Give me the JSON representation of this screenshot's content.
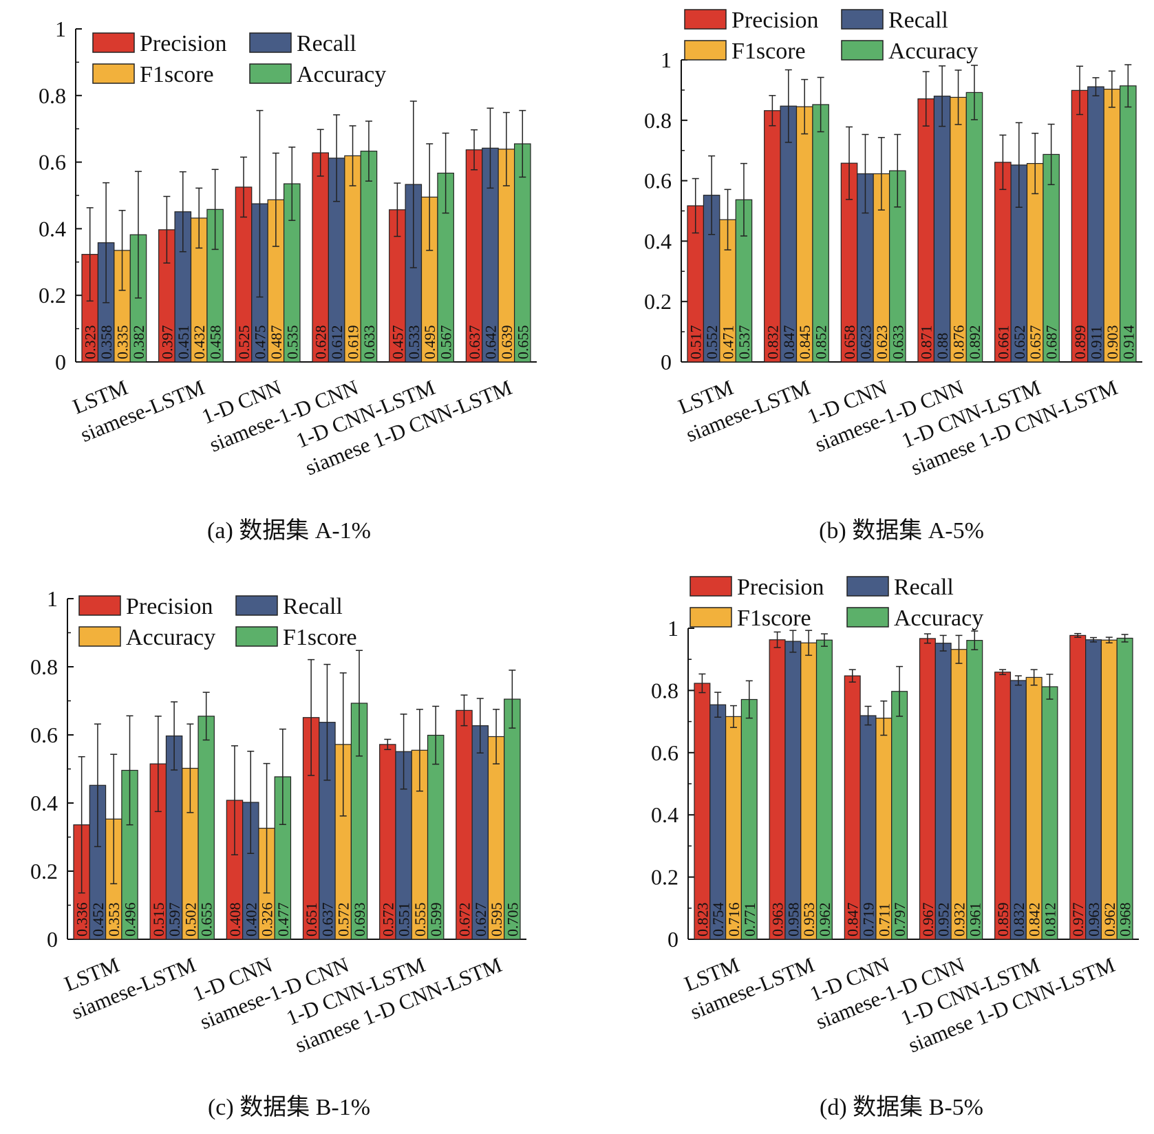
{
  "chart_data": [
    {
      "type": "bar",
      "caption": "(a)  数据集 A-1%",
      "categories": [
        "LSTM",
        "siamese-LSTM",
        "1-D CNN",
        "siamese-1-D CNN",
        "1-D CNN-LSTM",
        "siamese 1-D CNN-LSTM"
      ],
      "ylim": [
        0,
        1
      ],
      "yticks": [
        "0",
        "0.2",
        "0.4",
        "0.6",
        "0.8",
        "1"
      ],
      "ytick_values": [
        0,
        0.2,
        0.4,
        0.6,
        0.8,
        1
      ],
      "legend_position": "top-left",
      "series": [
        {
          "name": "Precision",
          "color": "#d93a2e",
          "values": [
            0.323,
            0.397,
            0.525,
            0.628,
            0.457,
            0.637
          ],
          "labels": [
            "0.323",
            "0.397",
            "0.525",
            "0.628",
            "0.457",
            "0.637"
          ],
          "errors": [
            0.14,
            0.1,
            0.09,
            0.07,
            0.08,
            0.06
          ]
        },
        {
          "name": "Recall",
          "color": "#475c86",
          "values": [
            0.358,
            0.451,
            0.475,
            0.612,
            0.533,
            0.642
          ],
          "labels": [
            "0.358",
            "0.451",
            "0.475",
            "0.612",
            "0.533",
            "0.642"
          ],
          "errors": [
            0.18,
            0.12,
            0.28,
            0.13,
            0.25,
            0.12
          ]
        },
        {
          "name": "F1score",
          "color": "#f2b13c",
          "values": [
            0.335,
            0.432,
            0.487,
            0.619,
            0.495,
            0.639
          ],
          "labels": [
            "0.335",
            "0.432",
            "0.487",
            "0.619",
            "0.495",
            "0.639"
          ],
          "errors": [
            0.12,
            0.09,
            0.14,
            0.09,
            0.16,
            0.11
          ]
        },
        {
          "name": "Accuracy",
          "color": "#5cb06a",
          "values": [
            0.382,
            0.458,
            0.535,
            0.633,
            0.567,
            0.655
          ],
          "labels": [
            "0.382",
            "0.458",
            "0.535",
            "0.633",
            "0.567",
            "0.655"
          ],
          "errors": [
            0.19,
            0.12,
            0.11,
            0.09,
            0.12,
            0.1
          ]
        }
      ]
    },
    {
      "type": "bar",
      "caption": "(b)  数据集 A-5%",
      "categories": [
        "LSTM",
        "siamese-LSTM",
        "1-D CNN",
        "siamese-1-D CNN",
        "1-D CNN-LSTM",
        "siamese 1-D CNN-LSTM"
      ],
      "ylim": [
        0,
        1
      ],
      "yticks": [
        "0",
        "0.2",
        "0.4",
        "0.6",
        "0.8",
        "1"
      ],
      "ytick_values": [
        0,
        0.2,
        0.4,
        0.6,
        0.8,
        1
      ],
      "legend_position": "top-left",
      "series": [
        {
          "name": "Precision",
          "color": "#d93a2e",
          "values": [
            0.517,
            0.832,
            0.658,
            0.871,
            0.661,
            0.899
          ],
          "labels": [
            "0.517",
            "0.832",
            "0.658",
            "0.871",
            "0.661",
            "0.899"
          ],
          "errors": [
            0.09,
            0.05,
            0.12,
            0.09,
            0.09,
            0.08
          ]
        },
        {
          "name": "Recall",
          "color": "#475c86",
          "values": [
            0.552,
            0.847,
            0.623,
            0.88,
            0.652,
            0.911
          ],
          "labels": [
            "0.552",
            "0.847",
            "0.623",
            "0.88",
            "0.652",
            "0.911"
          ],
          "errors": [
            0.13,
            0.12,
            0.13,
            0.1,
            0.14,
            0.03
          ]
        },
        {
          "name": "F1score",
          "color": "#f2b13c",
          "values": [
            0.471,
            0.845,
            0.623,
            0.876,
            0.657,
            0.903
          ],
          "labels": [
            "0.471",
            "0.845",
            "0.623",
            "0.876",
            "0.657",
            "0.903"
          ],
          "errors": [
            0.1,
            0.09,
            0.12,
            0.09,
            0.1,
            0.06
          ]
        },
        {
          "name": "Accuracy",
          "color": "#5cb06a",
          "values": [
            0.537,
            0.852,
            0.633,
            0.892,
            0.687,
            0.914
          ],
          "labels": [
            "0.537",
            "0.852",
            "0.633",
            "0.892",
            "0.687",
            "0.914"
          ],
          "errors": [
            0.12,
            0.09,
            0.12,
            0.09,
            0.1,
            0.07
          ]
        }
      ]
    },
    {
      "type": "bar",
      "caption": "(c)  数据集 B-1%",
      "categories": [
        "LSTM",
        "siamese-LSTM",
        "1-D CNN",
        "siamese-1-D CNN",
        "1-D CNN-LSTM",
        "siamese 1-D CNN-LSTM"
      ],
      "ylim": [
        0,
        1
      ],
      "yticks": [
        "0",
        "0.2",
        "0.4",
        "0.6",
        "0.8",
        "1"
      ],
      "ytick_values": [
        0,
        0.2,
        0.4,
        0.6,
        0.8,
        1
      ],
      "legend_position": "top-left",
      "series": [
        {
          "name": "Precision",
          "color": "#d93a2e",
          "values": [
            0.336,
            0.515,
            0.408,
            0.651,
            0.572,
            0.672
          ],
          "labels": [
            "0.336",
            "0.515",
            "0.408",
            "0.651",
            "0.572",
            "0.672"
          ],
          "errors": [
            0.2,
            0.14,
            0.16,
            0.17,
            0.015,
            0.045
          ]
        },
        {
          "name": "Recall",
          "color": "#475c86",
          "values": [
            0.452,
            0.597,
            0.402,
            0.637,
            0.551,
            0.627
          ],
          "labels": [
            "0.452",
            "0.597",
            "0.402",
            "0.637",
            "0.551",
            "0.627"
          ],
          "errors": [
            0.18,
            0.1,
            0.15,
            0.17,
            0.11,
            0.08
          ]
        },
        {
          "name": "Accuracy",
          "color": "#f2b13c",
          "values": [
            0.353,
            0.502,
            0.326,
            0.572,
            0.555,
            0.595
          ],
          "labels": [
            "0.353",
            "0.502",
            "0.326",
            "0.572",
            "0.555",
            "0.595"
          ],
          "errors": [
            0.19,
            0.13,
            0.19,
            0.21,
            0.12,
            0.08
          ]
        },
        {
          "name": "F1score",
          "color": "#5cb06a",
          "values": [
            0.496,
            0.655,
            0.477,
            0.693,
            0.599,
            0.705
          ],
          "labels": [
            "0.496",
            "0.655",
            "0.477",
            "0.693",
            "0.599",
            "0.705"
          ],
          "errors": [
            0.16,
            0.07,
            0.14,
            0.155,
            0.085,
            0.085
          ]
        }
      ]
    },
    {
      "type": "bar",
      "caption": "(d)  数据集 B-5%",
      "categories": [
        "LSTM",
        "siamese-LSTM",
        "1-D CNN",
        "siamese-1-D CNN",
        "1-D CNN-LSTM",
        "siamese 1-D CNN-LSTM"
      ],
      "ylim": [
        0,
        1
      ],
      "yticks": [
        "0",
        "0.2",
        "0.4",
        "0.6",
        "0.8",
        "1"
      ],
      "ytick_values": [
        0,
        0.2,
        0.4,
        0.6,
        0.8,
        1
      ],
      "legend_position": "top-left",
      "series": [
        {
          "name": "Precision",
          "color": "#d93a2e",
          "values": [
            0.823,
            0.963,
            0.847,
            0.967,
            0.859,
            0.977
          ],
          "labels": [
            "0.823",
            "0.963",
            "0.847",
            "0.967",
            "0.859",
            "0.977"
          ],
          "errors": [
            0.03,
            0.025,
            0.02,
            0.015,
            0.008,
            0.006
          ]
        },
        {
          "name": "Recall",
          "color": "#475c86",
          "values": [
            0.754,
            0.958,
            0.719,
            0.952,
            0.832,
            0.963
          ],
          "labels": [
            "0.754",
            "0.958",
            "0.719",
            "0.952",
            "0.832",
            "0.963"
          ],
          "errors": [
            0.04,
            0.035,
            0.03,
            0.025,
            0.015,
            0.007
          ]
        },
        {
          "name": "F1score",
          "color": "#f2b13c",
          "values": [
            0.716,
            0.953,
            0.711,
            0.932,
            0.842,
            0.962
          ],
          "labels": [
            "0.716",
            "0.953",
            "0.711",
            "0.932",
            "0.842",
            "0.962"
          ],
          "errors": [
            0.035,
            0.04,
            0.055,
            0.045,
            0.025,
            0.009
          ]
        },
        {
          "name": "Accuracy",
          "color": "#5cb06a",
          "values": [
            0.771,
            0.962,
            0.797,
            0.961,
            0.812,
            0.968
          ],
          "labels": [
            "0.771",
            "0.962",
            "0.797",
            "0.961",
            "0.812",
            "0.968"
          ],
          "errors": [
            0.06,
            0.02,
            0.08,
            0.03,
            0.04,
            0.012
          ]
        }
      ]
    }
  ]
}
